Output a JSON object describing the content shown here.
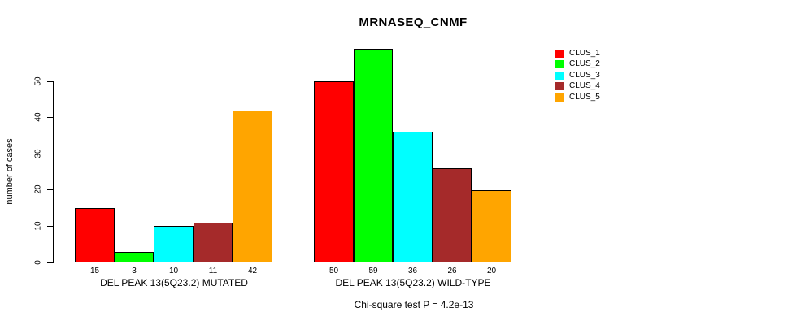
{
  "chart_data": {
    "type": "bar",
    "title": "MRNASEQ_CNMF",
    "ylabel": "number of cases",
    "xlabel": "",
    "annotation": "Chi-square test P = 4.2e-13",
    "y_ticks": [
      0,
      10,
      20,
      30,
      40,
      50
    ],
    "ylim": [
      0,
      60
    ],
    "grid": false,
    "legend_position": "right",
    "bar_value_labels_shown": true,
    "categories": [
      "DEL PEAK 13(5Q23.2) MUTATED",
      "DEL PEAK 13(5Q23.2) WILD-TYPE"
    ],
    "series": [
      {
        "name": "CLUS_1",
        "color": "#FF0000",
        "values": [
          15,
          50
        ]
      },
      {
        "name": "CLUS_2",
        "color": "#00FF00",
        "values": [
          3,
          59
        ]
      },
      {
        "name": "CLUS_3",
        "color": "#00FFFF",
        "values": [
          10,
          36
        ]
      },
      {
        "name": "CLUS_4",
        "color": "#A52A2A",
        "values": [
          11,
          26
        ]
      },
      {
        "name": "CLUS_5",
        "color": "#FFA500",
        "values": [
          42,
          20
        ]
      }
    ],
    "colors": {
      "axis": "#000000",
      "text": "#000000",
      "background": "#FFFFFF"
    }
  }
}
